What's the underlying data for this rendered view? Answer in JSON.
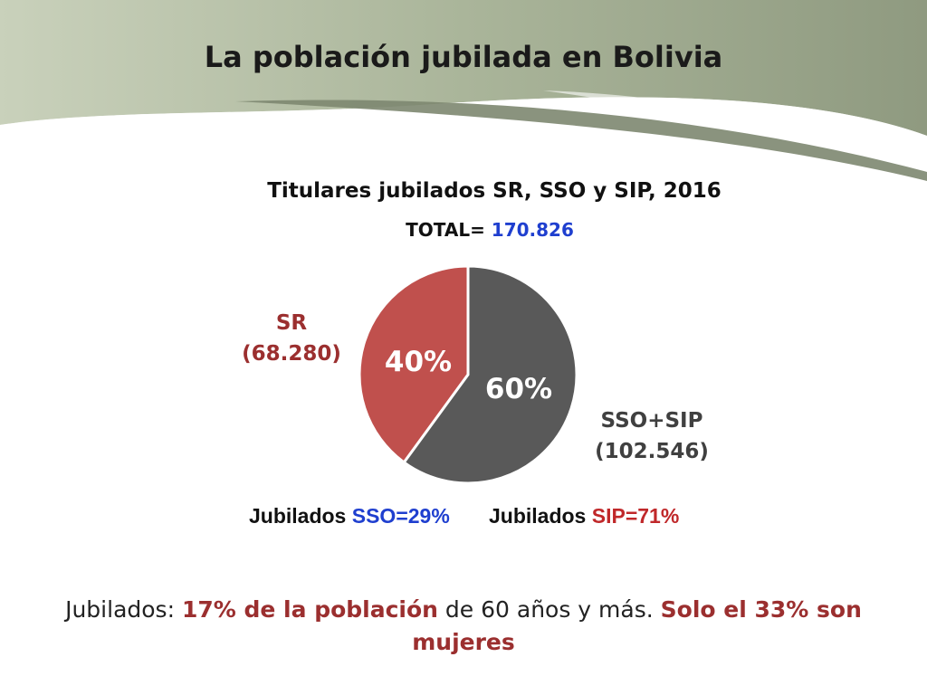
{
  "slide": {
    "title": "La población jubilada en Bolivia"
  },
  "chart_data": {
    "type": "pie",
    "title": "Titulares jubilados SR, SSO y SIP, 2016",
    "total_label": "TOTAL=",
    "total_value": "170.826",
    "slices": [
      {
        "name": "SR",
        "value": 68280,
        "value_label": "(68.280)",
        "percent": 40,
        "percent_label": "40%",
        "color": "#c0504d"
      },
      {
        "name": "SSO+SIP",
        "value": 102546,
        "value_label": "(102.546)",
        "percent": 60,
        "percent_label": "60%",
        "color": "#595959"
      }
    ]
  },
  "breakdown": {
    "sso_prefix": "Jubilados",
    "sso_value": "SSO=29%",
    "sip_prefix": "Jubilados",
    "sip_value": "SIP=71%"
  },
  "footer": {
    "part1": "Jubilados: ",
    "part2": "17% de la población",
    "part3": " de 60 años y más. ",
    "part4": "Solo el 33% son mujeres"
  },
  "colors": {
    "header_band": "#9aa58a",
    "accent_red": "#9b2f2f",
    "accent_blue": "#1f3fcf"
  }
}
